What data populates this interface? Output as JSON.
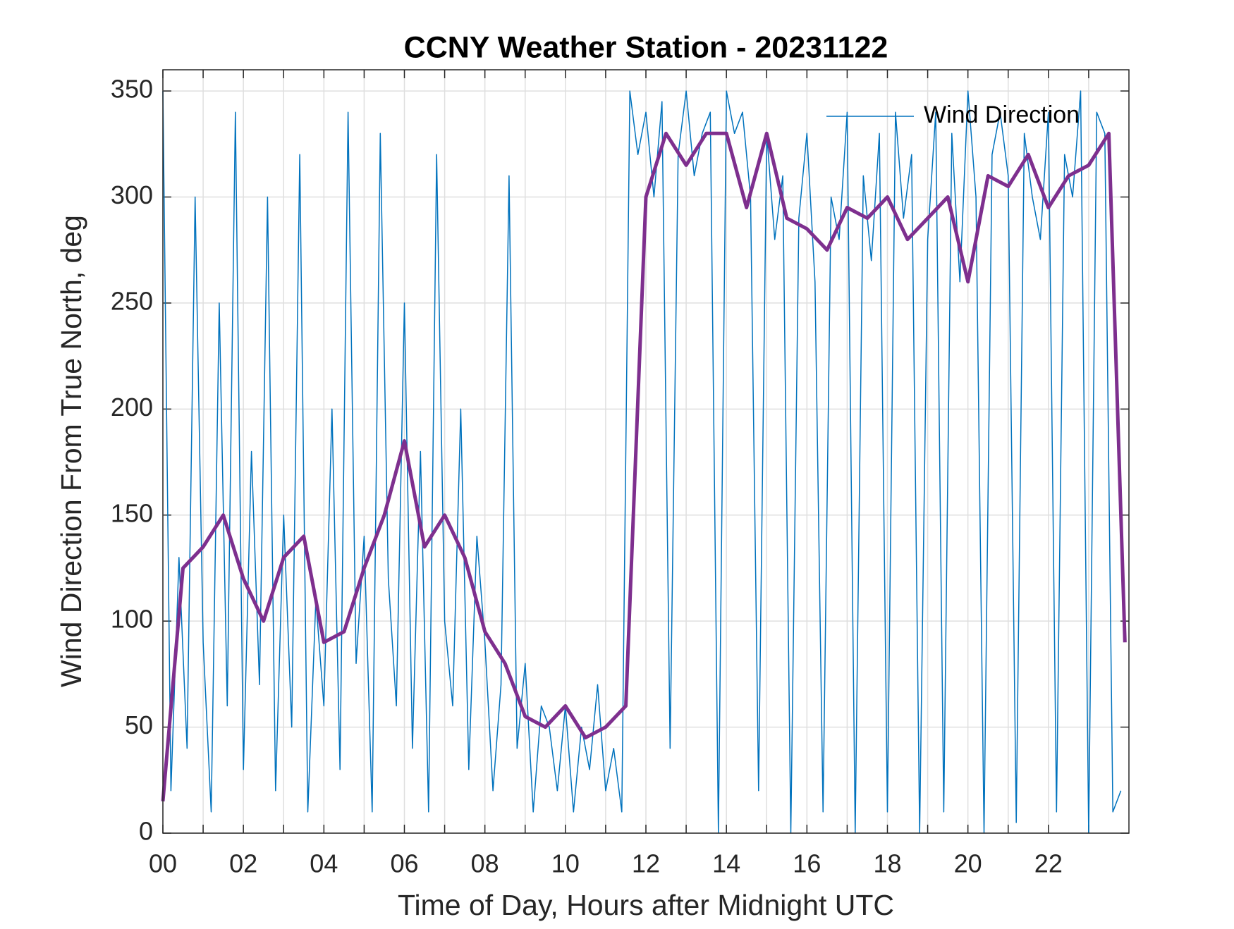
{
  "chart_data": {
    "type": "line",
    "title": "CCNY Weather Station - 20231122",
    "xlabel": "Time of Day, Hours after Midnight UTC",
    "ylabel": "Wind Direction From True North, deg",
    "xlim": [
      0,
      24
    ],
    "ylim": [
      0,
      360
    ],
    "xticks": [
      {
        "value": 0,
        "label": "00"
      },
      {
        "value": 2,
        "label": "02"
      },
      {
        "value": 4,
        "label": "04"
      },
      {
        "value": 6,
        "label": "06"
      },
      {
        "value": 8,
        "label": "08"
      },
      {
        "value": 10,
        "label": "10"
      },
      {
        "value": 12,
        "label": "12"
      },
      {
        "value": 14,
        "label": "14"
      },
      {
        "value": 16,
        "label": "16"
      },
      {
        "value": 18,
        "label": "18"
      },
      {
        "value": 20,
        "label": "20"
      },
      {
        "value": 22,
        "label": "22"
      }
    ],
    "xminorticks": [
      1,
      3,
      5,
      7,
      9,
      11,
      13,
      15,
      17,
      19,
      21,
      23
    ],
    "yticks": [
      0,
      50,
      100,
      150,
      200,
      250,
      300,
      350
    ],
    "grid": true,
    "legend": "upper right",
    "series": [
      {
        "name": "Wind Direction",
        "color": "#0072bd",
        "width": 1.5,
        "x": [
          0,
          0.2,
          0.4,
          0.6,
          0.8,
          1,
          1.2,
          1.4,
          1.6,
          1.8,
          2,
          2.2,
          2.4,
          2.6,
          2.8,
          3,
          3.2,
          3.4,
          3.6,
          3.8,
          4,
          4.2,
          4.4,
          4.6,
          4.8,
          5,
          5.2,
          5.4,
          5.6,
          5.8,
          6,
          6.2,
          6.4,
          6.6,
          6.8,
          7,
          7.2,
          7.4,
          7.6,
          7.8,
          8,
          8.2,
          8.4,
          8.6,
          8.8,
          9,
          9.2,
          9.4,
          9.6,
          9.8,
          10,
          10.2,
          10.4,
          10.6,
          10.8,
          11,
          11.2,
          11.4,
          11.6,
          11.8,
          12,
          12.2,
          12.4,
          12.6,
          12.8,
          13,
          13.2,
          13.4,
          13.6,
          13.8,
          14,
          14.2,
          14.4,
          14.6,
          14.8,
          15,
          15.2,
          15.4,
          15.6,
          15.8,
          16,
          16.2,
          16.4,
          16.6,
          16.8,
          17,
          17.2,
          17.4,
          17.6,
          17.8,
          18,
          18.2,
          18.4,
          18.6,
          18.8,
          19,
          19.2,
          19.4,
          19.6,
          19.8,
          20,
          20.2,
          20.4,
          20.6,
          20.8,
          21,
          21.2,
          21.4,
          21.6,
          21.8,
          22,
          22.2,
          22.4,
          22.6,
          22.8,
          23,
          23.2,
          23.4,
          23.6,
          23.8
        ],
        "values": [
          350,
          20,
          130,
          40,
          300,
          90,
          10,
          250,
          60,
          340,
          30,
          180,
          70,
          300,
          20,
          150,
          50,
          320,
          10,
          110,
          60,
          200,
          30,
          340,
          80,
          140,
          10,
          330,
          120,
          60,
          250,
          40,
          180,
          10,
          320,
          100,
          60,
          200,
          30,
          140,
          90,
          20,
          70,
          310,
          40,
          80,
          10,
          60,
          50,
          20,
          60,
          10,
          50,
          30,
          70,
          20,
          40,
          10,
          350,
          320,
          340,
          300,
          345,
          40,
          320,
          350,
          310,
          330,
          340,
          0,
          350,
          330,
          340,
          300,
          20,
          330,
          280,
          310,
          0,
          290,
          330,
          260,
          10,
          300,
          280,
          340,
          0,
          310,
          270,
          330,
          10,
          340,
          290,
          320,
          0,
          280,
          340,
          10,
          330,
          260,
          350,
          300,
          0,
          320,
          340,
          310,
          5,
          330,
          300,
          280,
          340,
          10,
          320,
          300,
          350,
          0,
          340,
          330,
          10,
          20
        ]
      },
      {
        "color": "#7e2f8e",
        "width": 5,
        "x": [
          0,
          0.5,
          1,
          1.5,
          2,
          2.5,
          3,
          3.5,
          4,
          4.5,
          5,
          5.5,
          6,
          6.5,
          7,
          7.5,
          8,
          8.5,
          9,
          9.5,
          10,
          10.5,
          11,
          11.5,
          12,
          12.5,
          13,
          13.5,
          14,
          14.5,
          15,
          15.5,
          16,
          16.5,
          17,
          17.5,
          18,
          18.5,
          19,
          19.5,
          20,
          20.5,
          21,
          21.5,
          22,
          22.5,
          23,
          23.5,
          23.9
        ],
        "values": [
          15,
          125,
          135,
          150,
          120,
          100,
          130,
          140,
          90,
          95,
          125,
          150,
          185,
          135,
          150,
          130,
          95,
          80,
          55,
          50,
          60,
          45,
          50,
          60,
          300,
          330,
          315,
          330,
          330,
          295,
          330,
          290,
          285,
          275,
          295,
          290,
          300,
          280,
          290,
          300,
          260,
          310,
          305,
          320,
          295,
          310,
          315,
          330,
          90
        ]
      }
    ]
  }
}
